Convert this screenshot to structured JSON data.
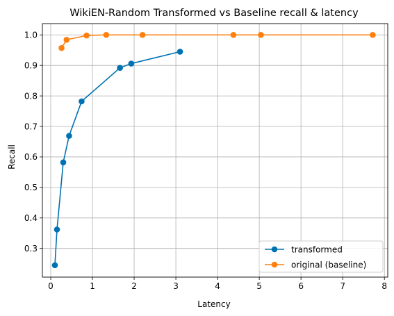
{
  "chart_data": {
    "type": "line",
    "title": "WikiEN-Random Transformed vs Baseline recall & latency",
    "xlabel": "Latency",
    "ylabel": "Recall",
    "xlim": [
      -0.2,
      8.08
    ],
    "ylim": [
      0.206,
      1.037
    ],
    "xticks": [
      0,
      1,
      2,
      3,
      4,
      5,
      6,
      7,
      8
    ],
    "xtick_labels": [
      "0",
      "1",
      "2",
      "3",
      "4",
      "5",
      "6",
      "7",
      "8"
    ],
    "yticks": [
      0.3,
      0.4,
      0.5,
      0.6,
      0.7,
      0.8,
      0.9,
      1.0
    ],
    "ytick_labels": [
      "0.3",
      "0.4",
      "0.5",
      "0.6",
      "0.7",
      "0.8",
      "0.9",
      "1.0"
    ],
    "grid": true,
    "legend_position": "lower-right",
    "series": [
      {
        "name": "transformed",
        "color": "#0072B2",
        "marker": "circle",
        "x": [
          0.1,
          0.15,
          0.3,
          0.44,
          0.74,
          1.66,
          1.93,
          3.1
        ],
        "y": [
          0.245,
          0.362,
          0.582,
          0.669,
          0.782,
          0.892,
          0.906,
          0.945
        ]
      },
      {
        "name": "original (baseline)",
        "color": "#FF7F0E",
        "marker": "circle",
        "x": [
          0.26,
          0.38,
          0.86,
          1.33,
          2.2,
          4.38,
          5.04,
          7.72
        ],
        "y": [
          0.957,
          0.984,
          0.998,
          1.0,
          1.0,
          1.0,
          1.0,
          1.0
        ]
      }
    ]
  }
}
